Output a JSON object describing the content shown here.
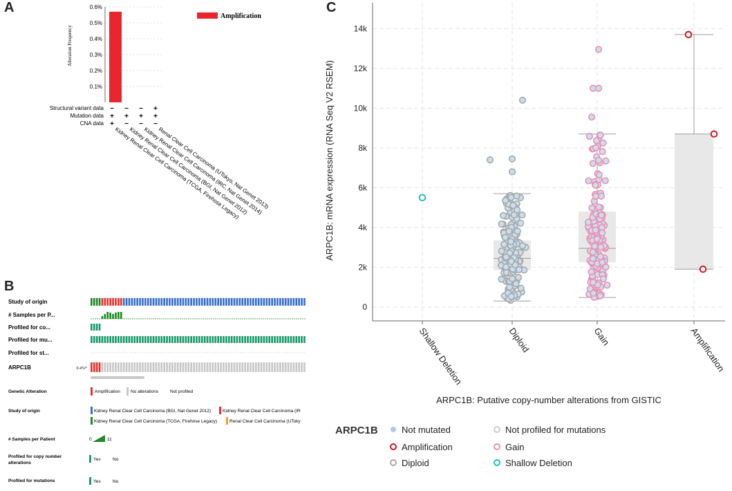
{
  "panels": {
    "a": "A",
    "b": "B",
    "c": "C"
  },
  "panel_a": {
    "y_label": "Alteration Frequency",
    "y_ticks": [
      "0.1%",
      "0.2%",
      "0.3%",
      "0.4%",
      "0.5%",
      "0.6%"
    ],
    "legend": "Amplification",
    "track_labels": [
      "Structural variant data",
      "Mutation data",
      "CNA data"
    ],
    "track_marks": [
      [
        "−",
        "−",
        "−",
        "+"
      ],
      [
        "+",
        "+",
        "+",
        "+"
      ],
      [
        "+",
        "−",
        "−",
        "−"
      ]
    ],
    "studies": [
      "Kidney Renal Clear Cell Carcinoma (TCGA, Firehose Legacy)",
      "Kidney Renal Clear Cell Carcinoma (BGI, Nat Genet 2012)",
      "Kidney Renal Clear Cell Carcinoma (IRC, Nat Genet 2014)",
      "Renal Clear Cell Carcinoma (UTokyo, Nat Genet 2013)"
    ]
  },
  "panel_b": {
    "rows": [
      "Study of origin",
      "# Samples per P...",
      "Profiled for co...",
      "Profiled for mu...",
      "Profiled for st...",
      "ARPC1B"
    ],
    "gene_pct": "0.4%*",
    "legend": {
      "genetic_alteration": {
        "title": "Genetic Alteration",
        "items": [
          "Amplification",
          "No alterations",
          "Not profiled"
        ]
      },
      "study_origin": {
        "title": "Study of origin",
        "items": [
          "Kidney Renal Clear Cell Carcinoma (BGI, Nat Genet 2012)",
          "Kidney Renal Clear Cell Carcinoma (IR",
          "Kidney Renal Clear Cell Carcinoma (TCGA, Firehose Legacy)",
          "Renal Clear Cell Carcinoma (UToky"
        ]
      },
      "samples_per_patient": {
        "title": "# Samples per Patient",
        "min": "0",
        "max": "11"
      },
      "profiled_cna": {
        "title_1": "Profiled for copy number",
        "title_2": "alterations",
        "yes": "Yes",
        "no": "No"
      },
      "profiled_mut": {
        "title": "Profiled for mutations",
        "yes": "Yes",
        "no": "No"
      }
    },
    "colors": {
      "green": "#1b9a6c",
      "red": "#e8312f",
      "blue": "#3a6fcc",
      "orange": "#f29a2e",
      "dkgreen": "#1f8a22",
      "gray": "#c8c8c8"
    }
  },
  "chart_data": [
    {
      "type": "bar",
      "title": "",
      "ylabel": "Alteration Frequency",
      "ylim": [
        0,
        0.6
      ],
      "categories": [
        "Kidney Renal Clear Cell Carcinoma (TCGA, Firehose Legacy)",
        "Kidney Renal Clear Cell Carcinoma (BGI, Nat Genet 2012)",
        "Kidney Renal Clear Cell Carcinoma (IRC, Nat Genet 2014)",
        "Renal Clear Cell Carcinoma (UTokyo, Nat Genet 2013)"
      ],
      "series": [
        {
          "name": "Amplification",
          "values": [
            0.57,
            0,
            0,
            0
          ],
          "color": "#e8262c"
        }
      ]
    },
    {
      "type": "box",
      "xlabel": "ARPC1B: Putative copy-number alterations from GISTIC",
      "ylabel": "ARPC1B: mRNA expression (RNA Seq V2 RSEM)",
      "ylim": [
        -700,
        15300
      ],
      "y_ticks": [
        0,
        2000,
        4000,
        6000,
        8000,
        10000,
        12000,
        14000
      ],
      "y_tick_labels": [
        "0",
        "2k",
        "4k",
        "6k",
        "8k",
        "10k",
        "12k",
        "14k"
      ],
      "categories": [
        "Shallow Deletion",
        "Diploid",
        "Gain",
        "Amplification"
      ],
      "boxes": [
        null,
        {
          "min": 300,
          "q1": 1850,
          "median": 2450,
          "q3": 3350,
          "max": 5700
        },
        {
          "min": 480,
          "q1": 2250,
          "median": 2950,
          "q3": 4800,
          "max": 8700
        },
        {
          "min": 1900,
          "q1": 1900,
          "median": 8700,
          "q3": 8700,
          "max": 13700
        }
      ],
      "points": {
        "Shallow Deletion": [
          5500
        ],
        "Amplification": [
          13700,
          8700,
          1900
        ],
        "Gain_outliers": [
          12950,
          11000,
          11000,
          9550
        ],
        "Diploid_outliers": [
          10400,
          7450,
          7400,
          6800
        ]
      },
      "n_points": {
        "Diploid": 200,
        "Gain": 160
      },
      "legend_title": "ARPC1B",
      "legend": [
        {
          "label": "Not mutated",
          "kind": "dot",
          "color": "#a8cde6"
        },
        {
          "label": "Not profiled for mutations",
          "kind": "ring",
          "color": "#cccccc"
        },
        {
          "label": "Amplification",
          "kind": "ring",
          "color": "#d0161f"
        },
        {
          "label": "Gain",
          "kind": "ring",
          "color": "#ee8fb0"
        },
        {
          "label": "Diploid",
          "kind": "ring",
          "color": "#a8a8a8"
        },
        {
          "label": "Shallow Deletion",
          "kind": "ring",
          "color": "#1fbcc8"
        }
      ]
    }
  ]
}
